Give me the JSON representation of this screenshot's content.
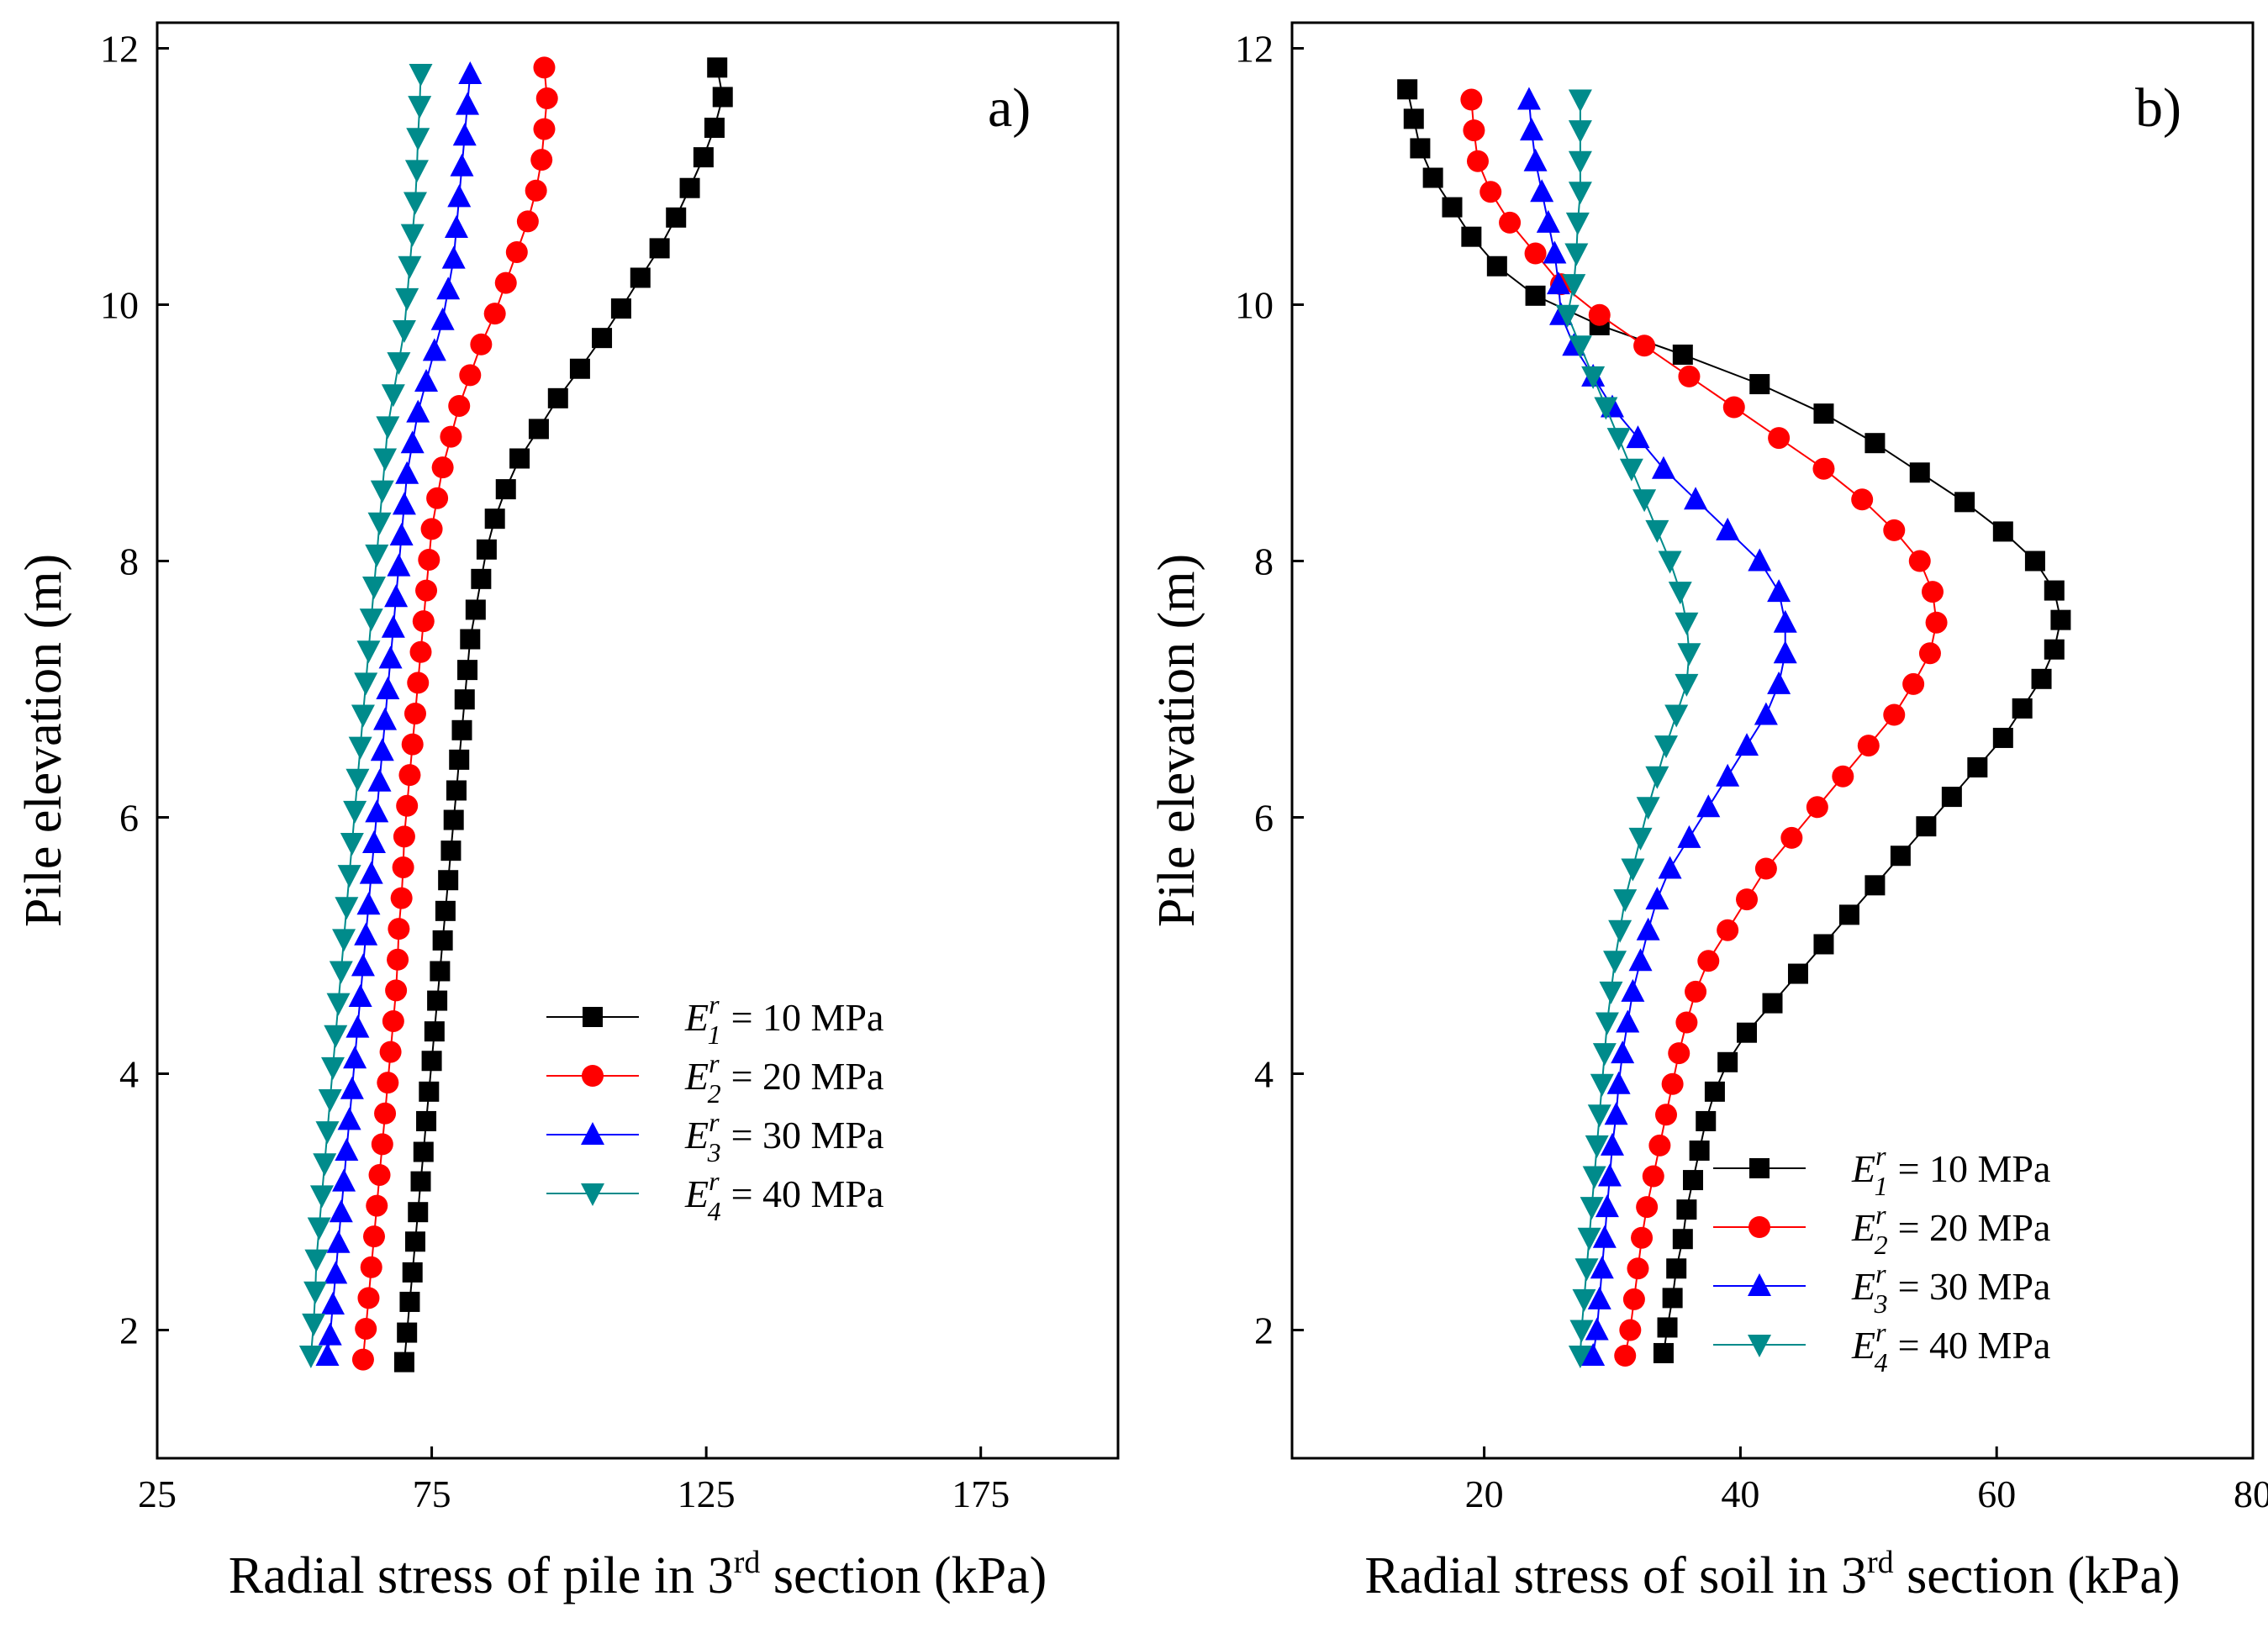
{
  "chart_data": [
    {
      "type": "line",
      "panel_label": "a)",
      "xlabel": "Radial stress of pile in 3",
      "xlabel_sup": "rd",
      "xlabel_tail": " section (kPa)",
      "ylabel": "Pile elevation (m)",
      "xlim": [
        25,
        200
      ],
      "ylim": [
        1,
        12.2
      ],
      "xticks": [
        25,
        75,
        125,
        175
      ],
      "yticks": [
        2,
        4,
        6,
        8,
        10,
        12
      ],
      "legend": [
        "= 10 MPa",
        "= 20 MPa",
        "= 30 MPa",
        "= 40 MPa"
      ],
      "legend_symbol": "E",
      "legend_subs": [
        "1",
        "2",
        "3",
        "4"
      ],
      "legend_sup": "r",
      "legend_position": "center-right",
      "series": [
        {
          "name": "E1 = 10 MPa",
          "color": "#000000",
          "marker": "square",
          "y": [
            11.85,
            11.62,
            11.38,
            11.15,
            10.91,
            10.68,
            10.44,
            10.21,
            9.97,
            9.74,
            9.5,
            9.27,
            9.03,
            8.8,
            8.56,
            8.33,
            8.09,
            7.86,
            7.62,
            7.39,
            7.15,
            6.92,
            6.68,
            6.45,
            6.21,
            5.98,
            5.74,
            5.51,
            5.27,
            5.04,
            4.8,
            4.57,
            4.33,
            4.1,
            3.86,
            3.63,
            3.39,
            3.16,
            2.92,
            2.69,
            2.45,
            2.22,
            1.98,
            1.75
          ],
          "x": [
            127.0,
            128.0,
            126.5,
            124.5,
            122.0,
            119.5,
            116.5,
            113.0,
            109.5,
            106.0,
            102.0,
            98.0,
            94.5,
            91.0,
            88.5,
            86.5,
            85.0,
            84.0,
            83.0,
            82.0,
            81.5,
            81.0,
            80.5,
            80.0,
            79.5,
            79.0,
            78.5,
            78.0,
            77.5,
            77.0,
            76.5,
            76.0,
            75.5,
            75.0,
            74.5,
            74.0,
            73.5,
            73.0,
            72.5,
            72.0,
            71.5,
            71.0,
            70.5,
            70.0
          ]
        },
        {
          "name": "E2 = 20 MPa",
          "color": "#ff0000",
          "marker": "circle",
          "y": [
            11.85,
            11.61,
            11.37,
            11.13,
            10.89,
            10.65,
            10.41,
            10.17,
            9.93,
            9.69,
            9.45,
            9.21,
            8.97,
            8.73,
            8.49,
            8.25,
            8.01,
            7.77,
            7.53,
            7.29,
            7.05,
            6.81,
            6.57,
            6.33,
            6.09,
            5.85,
            5.61,
            5.37,
            5.13,
            4.89,
            4.65,
            4.41,
            4.17,
            3.93,
            3.69,
            3.45,
            3.21,
            2.97,
            2.73,
            2.49,
            2.25,
            2.01,
            1.77
          ],
          "x": [
            95.5,
            96.0,
            95.5,
            95.0,
            94.0,
            92.5,
            90.5,
            88.5,
            86.5,
            84.0,
            82.0,
            80.0,
            78.5,
            77.0,
            76.0,
            75.0,
            74.5,
            74.0,
            73.5,
            73.0,
            72.5,
            72.0,
            71.5,
            71.0,
            70.5,
            70.0,
            69.8,
            69.5,
            69.0,
            68.8,
            68.5,
            68.0,
            67.5,
            67.0,
            66.5,
            66.0,
            65.5,
            65.0,
            64.5,
            64.0,
            63.5,
            63.0,
            62.5
          ]
        },
        {
          "name": "E3 = 30 MPa",
          "color": "#0000ff",
          "marker": "triangle-up",
          "y": [
            11.8,
            11.56,
            11.32,
            11.08,
            10.84,
            10.6,
            10.36,
            10.12,
            9.88,
            9.64,
            9.4,
            9.16,
            8.92,
            8.68,
            8.44,
            8.2,
            7.96,
            7.72,
            7.48,
            7.24,
            7.0,
            6.76,
            6.52,
            6.28,
            6.04,
            5.8,
            5.56,
            5.32,
            5.08,
            4.84,
            4.6,
            4.36,
            4.12,
            3.88,
            3.64,
            3.4,
            3.16,
            2.92,
            2.68,
            2.44,
            2.2,
            1.96,
            1.8
          ],
          "x": [
            82.0,
            81.5,
            81.0,
            80.5,
            80.0,
            79.5,
            79.0,
            78.0,
            77.0,
            75.5,
            74.0,
            72.5,
            71.5,
            70.5,
            70.0,
            69.5,
            69.0,
            68.5,
            68.0,
            67.5,
            67.0,
            66.5,
            66.0,
            65.5,
            65.0,
            64.5,
            64.0,
            63.5,
            63.0,
            62.5,
            62.0,
            61.5,
            61.0,
            60.5,
            60.0,
            59.5,
            59.0,
            58.5,
            58.0,
            57.5,
            57.0,
            56.5,
            56.0
          ]
        },
        {
          "name": "E4 = 40 MPa",
          "color": "#008b8b",
          "marker": "triangle-down",
          "y": [
            11.8,
            11.55,
            11.3,
            11.05,
            10.8,
            10.55,
            10.3,
            10.05,
            9.8,
            9.55,
            9.3,
            9.05,
            8.8,
            8.55,
            8.3,
            8.05,
            7.8,
            7.55,
            7.3,
            7.05,
            6.8,
            6.55,
            6.3,
            6.05,
            5.8,
            5.55,
            5.3,
            5.05,
            4.8,
            4.55,
            4.3,
            4.05,
            3.8,
            3.55,
            3.3,
            3.05,
            2.8,
            2.55,
            2.3,
            2.05,
            1.8
          ],
          "x": [
            73.0,
            72.8,
            72.5,
            72.3,
            72.0,
            71.5,
            71.0,
            70.5,
            70.0,
            69.0,
            68.0,
            67.0,
            66.5,
            66.0,
            65.5,
            65.0,
            64.5,
            64.0,
            63.5,
            63.0,
            62.5,
            62.0,
            61.5,
            61.0,
            60.5,
            60.0,
            59.5,
            59.0,
            58.5,
            58.0,
            57.5,
            57.0,
            56.5,
            56.0,
            55.5,
            55.0,
            54.5,
            54.0,
            53.8,
            53.5,
            53.0
          ]
        }
      ]
    },
    {
      "type": "line",
      "panel_label": "b)",
      "xlabel": "Radial stress of soil in 3",
      "xlabel_sup": "rd",
      "xlabel_tail": " section (kPa)",
      "ylabel": "Pile elevation (m)",
      "xlim": [
        5,
        80
      ],
      "ylim": [
        1,
        12.2
      ],
      "xticks": [
        20,
        40,
        60,
        80
      ],
      "yticks": [
        2,
        4,
        6,
        8,
        10,
        12
      ],
      "legend": [
        "= 10 MPa",
        "= 20 MPa",
        "= 30 MPa",
        "= 40 MPa"
      ],
      "legend_symbol": "E",
      "legend_subs": [
        "1",
        "2",
        "3",
        "4"
      ],
      "legend_sup": "r",
      "legend_position": "lower-right",
      "series": [
        {
          "name": "E1 = 10 MPa",
          "color": "#000000",
          "marker": "square",
          "y": [
            11.68,
            11.45,
            11.22,
            10.99,
            10.76,
            10.53,
            10.3,
            10.07,
            9.84,
            9.61,
            9.38,
            9.15,
            8.92,
            8.69,
            8.46,
            8.23,
            8.0,
            7.77,
            7.54,
            7.31,
            7.08,
            6.85,
            6.62,
            6.39,
            6.16,
            5.93,
            5.7,
            5.47,
            5.24,
            5.01,
            4.78,
            4.55,
            4.32,
            4.09,
            3.86,
            3.63,
            3.4,
            3.17,
            2.94,
            2.71,
            2.48,
            2.25,
            2.02,
            1.82
          ],
          "x": [
            14.0,
            14.5,
            15.0,
            16.0,
            17.5,
            19.0,
            21.0,
            24.0,
            29.0,
            35.5,
            41.5,
            46.5,
            50.5,
            54.0,
            57.5,
            60.5,
            63.0,
            64.5,
            65.0,
            64.5,
            63.5,
            62.0,
            60.5,
            58.5,
            56.5,
            54.5,
            52.5,
            50.5,
            48.5,
            46.5,
            44.5,
            42.5,
            40.5,
            39.0,
            38.0,
            37.3,
            36.8,
            36.3,
            35.8,
            35.5,
            35.0,
            34.7,
            34.3,
            34.0
          ]
        },
        {
          "name": "E2 = 20 MPa",
          "color": "#ff0000",
          "marker": "circle",
          "y": [
            11.6,
            11.36,
            11.12,
            10.88,
            10.64,
            10.4,
            10.16,
            9.92,
            9.68,
            9.44,
            9.2,
            8.96,
            8.72,
            8.48,
            8.24,
            8.0,
            7.76,
            7.52,
            7.28,
            7.04,
            6.8,
            6.56,
            6.32,
            6.08,
            5.84,
            5.6,
            5.36,
            5.12,
            4.88,
            4.64,
            4.4,
            4.16,
            3.92,
            3.68,
            3.44,
            3.2,
            2.96,
            2.72,
            2.48,
            2.24,
            2.0,
            1.8
          ],
          "x": [
            19.0,
            19.2,
            19.5,
            20.5,
            22.0,
            24.0,
            26.0,
            29.0,
            32.5,
            36.0,
            39.5,
            43.0,
            46.5,
            49.5,
            52.0,
            54.0,
            55.0,
            55.3,
            54.8,
            53.5,
            52.0,
            50.0,
            48.0,
            46.0,
            44.0,
            42.0,
            40.5,
            39.0,
            37.5,
            36.5,
            35.8,
            35.2,
            34.7,
            34.2,
            33.7,
            33.2,
            32.7,
            32.3,
            32.0,
            31.7,
            31.4,
            31.0
          ]
        },
        {
          "name": "E3 = 30 MPa",
          "color": "#0000ff",
          "marker": "triangle-up",
          "y": [
            11.6,
            11.36,
            11.12,
            10.88,
            10.64,
            10.4,
            10.16,
            9.92,
            9.68,
            9.44,
            9.2,
            8.96,
            8.72,
            8.48,
            8.24,
            8.0,
            7.76,
            7.52,
            7.28,
            7.04,
            6.8,
            6.56,
            6.32,
            6.08,
            5.84,
            5.6,
            5.36,
            5.12,
            4.88,
            4.64,
            4.4,
            4.16,
            3.92,
            3.68,
            3.44,
            3.2,
            2.96,
            2.72,
            2.48,
            2.24,
            2.0,
            1.8
          ],
          "x": [
            23.5,
            23.7,
            24.0,
            24.5,
            25.0,
            25.5,
            25.8,
            26.0,
            27.0,
            28.5,
            30.0,
            32.0,
            34.0,
            36.5,
            39.0,
            41.5,
            43.0,
            43.5,
            43.5,
            43.0,
            42.0,
            40.5,
            39.0,
            37.5,
            36.0,
            34.5,
            33.5,
            32.8,
            32.2,
            31.6,
            31.2,
            30.8,
            30.5,
            30.3,
            30.0,
            29.8,
            29.6,
            29.4,
            29.2,
            29.0,
            28.8,
            28.5
          ]
        },
        {
          "name": "E4 = 40 MPa",
          "color": "#008b8b",
          "marker": "triangle-down",
          "y": [
            11.6,
            11.36,
            11.12,
            10.88,
            10.64,
            10.4,
            10.16,
            9.92,
            9.68,
            9.44,
            9.2,
            8.96,
            8.72,
            8.48,
            8.24,
            8.0,
            7.76,
            7.52,
            7.28,
            7.04,
            6.8,
            6.56,
            6.32,
            6.08,
            5.84,
            5.6,
            5.36,
            5.12,
            4.88,
            4.64,
            4.4,
            4.16,
            3.92,
            3.68,
            3.44,
            3.2,
            2.96,
            2.72,
            2.48,
            2.24,
            2.0,
            1.8
          ],
          "x": [
            27.5,
            27.5,
            27.5,
            27.5,
            27.3,
            27.2,
            27.0,
            26.5,
            27.5,
            28.5,
            29.5,
            30.5,
            31.5,
            32.5,
            33.5,
            34.5,
            35.3,
            35.8,
            36.0,
            35.8,
            35.0,
            34.2,
            33.5,
            32.8,
            32.2,
            31.6,
            31.0,
            30.6,
            30.2,
            29.9,
            29.6,
            29.4,
            29.2,
            29.0,
            28.8,
            28.6,
            28.4,
            28.2,
            28.0,
            27.8,
            27.6,
            27.5
          ]
        }
      ]
    }
  ]
}
